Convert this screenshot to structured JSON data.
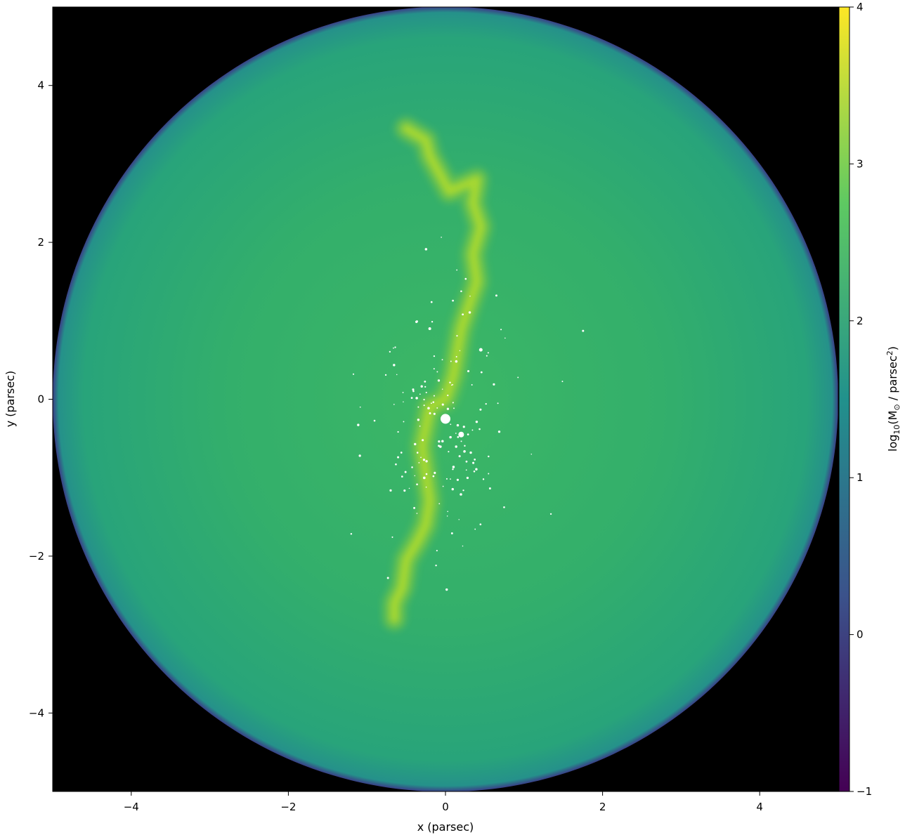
{
  "chart_data": {
    "type": "heatmap",
    "title": "",
    "xlabel": "x (parsec)",
    "ylabel": "y (parsec)",
    "xlim": [
      -5,
      5
    ],
    "ylim": [
      -5,
      5
    ],
    "xticks": [
      -4,
      -2,
      0,
      2,
      4
    ],
    "yticks": [
      -4,
      -2,
      0,
      2,
      4
    ],
    "colorbar": {
      "label_prefix": "log",
      "label_sub": "10",
      "label_mid": "(M",
      "label_sun": "⊙",
      "label_tail": " / parsec",
      "label_sup": "2",
      "label_close": ")",
      "range": [
        -1,
        4
      ],
      "ticks": [
        -1,
        0,
        1,
        2,
        3,
        4
      ],
      "colormap": "viridis",
      "colors": [
        "#440154",
        "#3b528b",
        "#21918c",
        "#5ec962",
        "#fde725"
      ]
    },
    "background_color": "#000000",
    "disk": {
      "center": [
        0,
        0
      ],
      "radius": 5.0,
      "log_density": 2.2
    },
    "filament": {
      "log_density_peak": 3.5,
      "path": [
        [
          -0.5,
          3.45
        ],
        [
          -0.25,
          3.3
        ],
        [
          -0.2,
          3.1
        ],
        [
          0.05,
          2.65
        ],
        [
          0.4,
          2.8
        ],
        [
          0.35,
          2.5
        ],
        [
          0.45,
          2.2
        ],
        [
          0.35,
          1.85
        ],
        [
          0.4,
          1.5
        ],
        [
          0.3,
          1.2
        ],
        [
          0.2,
          0.9
        ],
        [
          0.15,
          0.6
        ],
        [
          0.1,
          0.3
        ],
        [
          0.0,
          0.0
        ],
        [
          -0.2,
          -0.1
        ],
        [
          -0.3,
          -0.6
        ],
        [
          -0.2,
          -1.3
        ],
        [
          -0.25,
          -1.6
        ],
        [
          -0.35,
          -1.8
        ],
        [
          -0.5,
          -2.05
        ],
        [
          -0.55,
          -2.4
        ],
        [
          -0.65,
          -2.6
        ],
        [
          -0.65,
          -2.8
        ]
      ]
    },
    "sink_particles": {
      "color": "#ffffff",
      "large": [
        [
          0.0,
          -0.25,
          7
        ],
        [
          0.2,
          -0.45,
          4
        ],
        [
          0.45,
          0.63,
          2.5
        ],
        [
          -0.2,
          0.9,
          2
        ]
      ]
    }
  }
}
